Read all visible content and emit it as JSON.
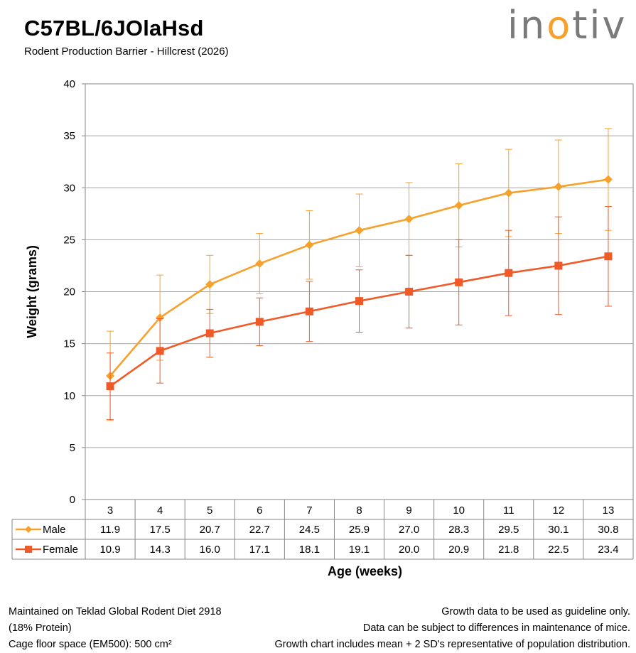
{
  "header": {
    "title": "C57BL/6JOlaHsd",
    "subtitle": "Rodent Production Barrier - Hillcrest (2026)",
    "logo": {
      "pre": "in",
      "accent": "o",
      "post": "tiv"
    }
  },
  "colors": {
    "male": "#f7a12d",
    "female": "#f05a28",
    "grid": "#a6a6a6",
    "axis": "#868686"
  },
  "chart_data": {
    "type": "line",
    "xlabel": "Age (weeks)",
    "ylabel": "Weight (grams)",
    "ylim": [
      0,
      40
    ],
    "yticks": [
      0,
      5,
      10,
      15,
      20,
      25,
      30,
      35,
      40
    ],
    "grid": true,
    "legend": "data-table",
    "x": [
      3,
      4,
      5,
      6,
      7,
      8,
      9,
      10,
      11,
      12,
      13
    ],
    "series": [
      {
        "name": "Male",
        "values": [
          11.9,
          17.5,
          20.7,
          22.7,
          24.5,
          25.9,
          27.0,
          28.3,
          29.5,
          30.1,
          30.8
        ],
        "labels": [
          "11.9",
          "17.5",
          "20.7",
          "22.7",
          "24.5",
          "25.9",
          "27.0",
          "28.3",
          "29.5",
          "30.1",
          "30.8"
        ],
        "sd2": [
          4.3,
          4.1,
          2.8,
          2.9,
          3.3,
          3.5,
          3.5,
          4.0,
          4.2,
          4.5,
          4.9
        ],
        "marker": "diamond"
      },
      {
        "name": "Female",
        "values": [
          10.9,
          14.3,
          16.0,
          17.1,
          18.1,
          19.1,
          20.0,
          20.9,
          21.8,
          22.5,
          23.4
        ],
        "labels": [
          "10.9",
          "14.3",
          "16.0",
          "17.1",
          "18.1",
          "19.1",
          "20.0",
          "20.9",
          "21.8",
          "22.5",
          "23.4"
        ],
        "sd2": [
          3.2,
          3.1,
          2.3,
          2.3,
          2.9,
          3.0,
          3.5,
          4.1,
          4.1,
          4.7,
          4.8
        ],
        "marker": "square"
      }
    ]
  },
  "notes": {
    "left": [
      "Maintained on Teklad Global Rodent Diet 2918",
      "(18% Protein)",
      "Cage floor space (EM500): 500 cm²"
    ],
    "right": [
      "Growth data to be used as guideline only.",
      "Data can be subject to differences in maintenance of mice.",
      "Growth chart includes mean + 2 SD's representative of population distribution."
    ]
  }
}
